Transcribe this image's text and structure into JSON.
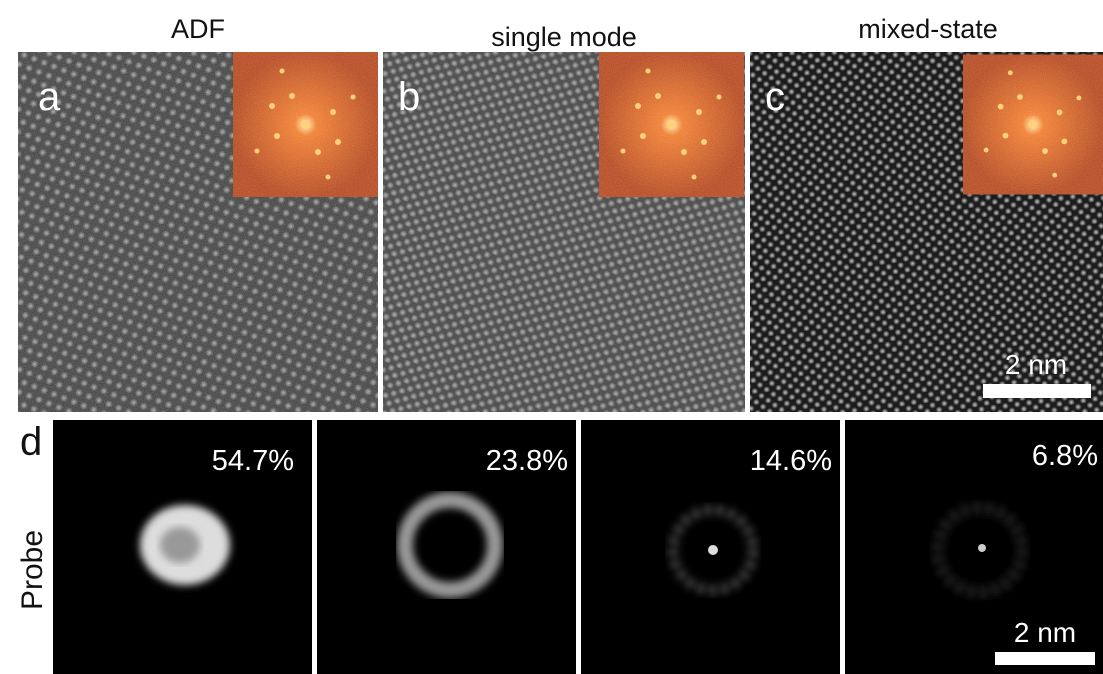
{
  "panels": [
    {
      "title": "ADF",
      "label": "a"
    },
    {
      "title": "single mode",
      "label": "b"
    },
    {
      "title": "mixed-state",
      "label": "c",
      "scale_bar": "2 nm"
    }
  ],
  "probe": {
    "label": "d",
    "axis_label": "Probe",
    "modes": [
      "54.7%",
      "23.8%",
      "14.6%",
      "6.8%"
    ],
    "scale_bar": "2 nm"
  }
}
